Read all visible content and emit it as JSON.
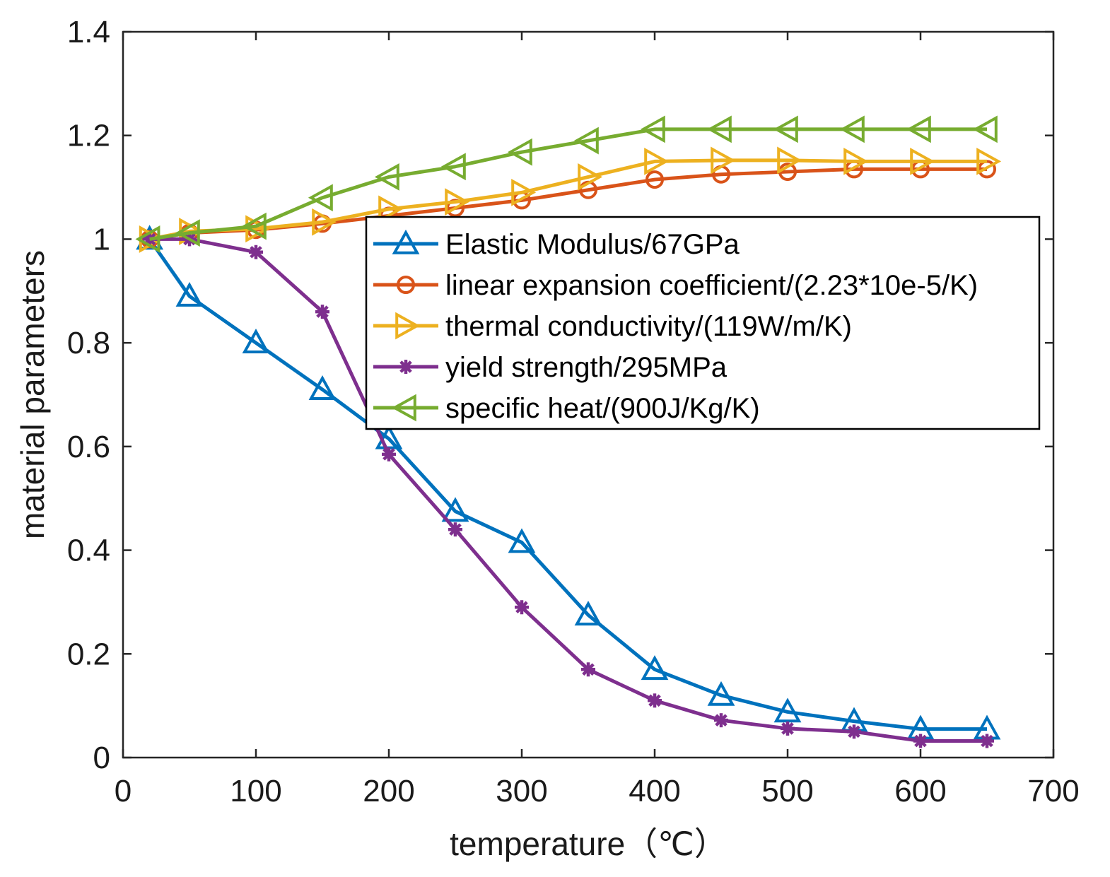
{
  "chart_data": {
    "type": "line",
    "title": "",
    "xlabel": "temperature（℃）",
    "ylabel": "material parameters",
    "xlim": [
      0,
      700
    ],
    "ylim": [
      0,
      1.4
    ],
    "xticks": [
      0,
      100,
      200,
      300,
      400,
      500,
      600,
      700
    ],
    "yticks": [
      0,
      0.2,
      0.4,
      0.6,
      0.8,
      1,
      1.2,
      1.4
    ],
    "xtick_labels": [
      "0",
      "100",
      "200",
      "300",
      "400",
      "500",
      "600",
      "700"
    ],
    "ytick_labels": [
      "0",
      "0.2",
      "0.4",
      "0.6",
      "0.8",
      "1",
      "1.2",
      "1.4"
    ],
    "grid": false,
    "legend_position": "center-right",
    "x": [
      20,
      50,
      100,
      150,
      200,
      250,
      300,
      350,
      400,
      450,
      500,
      550,
      600,
      650
    ],
    "series": [
      {
        "name": "Elastic Modulus/67GPa",
        "color": "#0072BD",
        "marker": "triangle-up",
        "values": [
          1.0,
          0.89,
          0.8,
          0.71,
          0.615,
          0.475,
          0.415,
          0.275,
          0.17,
          0.12,
          0.088,
          0.07,
          0.055,
          0.055
        ]
      },
      {
        "name": "linear expansion coefficient/(2.23*10e-5/K)",
        "color": "#D95319",
        "marker": "circle",
        "values": [
          1.0,
          1.012,
          1.018,
          1.03,
          1.045,
          1.06,
          1.075,
          1.095,
          1.115,
          1.125,
          1.13,
          1.135,
          1.135,
          1.135
        ]
      },
      {
        "name": "thermal conductivity/(119W/m/K)",
        "color": "#EDB120",
        "marker": "triangle-right",
        "values": [
          1.0,
          1.015,
          1.02,
          1.033,
          1.058,
          1.072,
          1.09,
          1.12,
          1.15,
          1.152,
          1.152,
          1.15,
          1.15,
          1.15
        ]
      },
      {
        "name": "yield strength/295MPa",
        "color": "#7E2F8E",
        "marker": "asterisk",
        "values": [
          1.0,
          1.0,
          0.975,
          0.86,
          0.585,
          0.44,
          0.29,
          0.17,
          0.11,
          0.072,
          0.056,
          0.05,
          0.032,
          0.032
        ]
      },
      {
        "name": "specific heat/(900J/Kg/K)",
        "color": "#77AC30",
        "marker": "triangle-left",
        "values": [
          1.0,
          1.012,
          1.025,
          1.08,
          1.12,
          1.14,
          1.168,
          1.19,
          1.212,
          1.212,
          1.212,
          1.212,
          1.212,
          1.212
        ]
      }
    ]
  }
}
